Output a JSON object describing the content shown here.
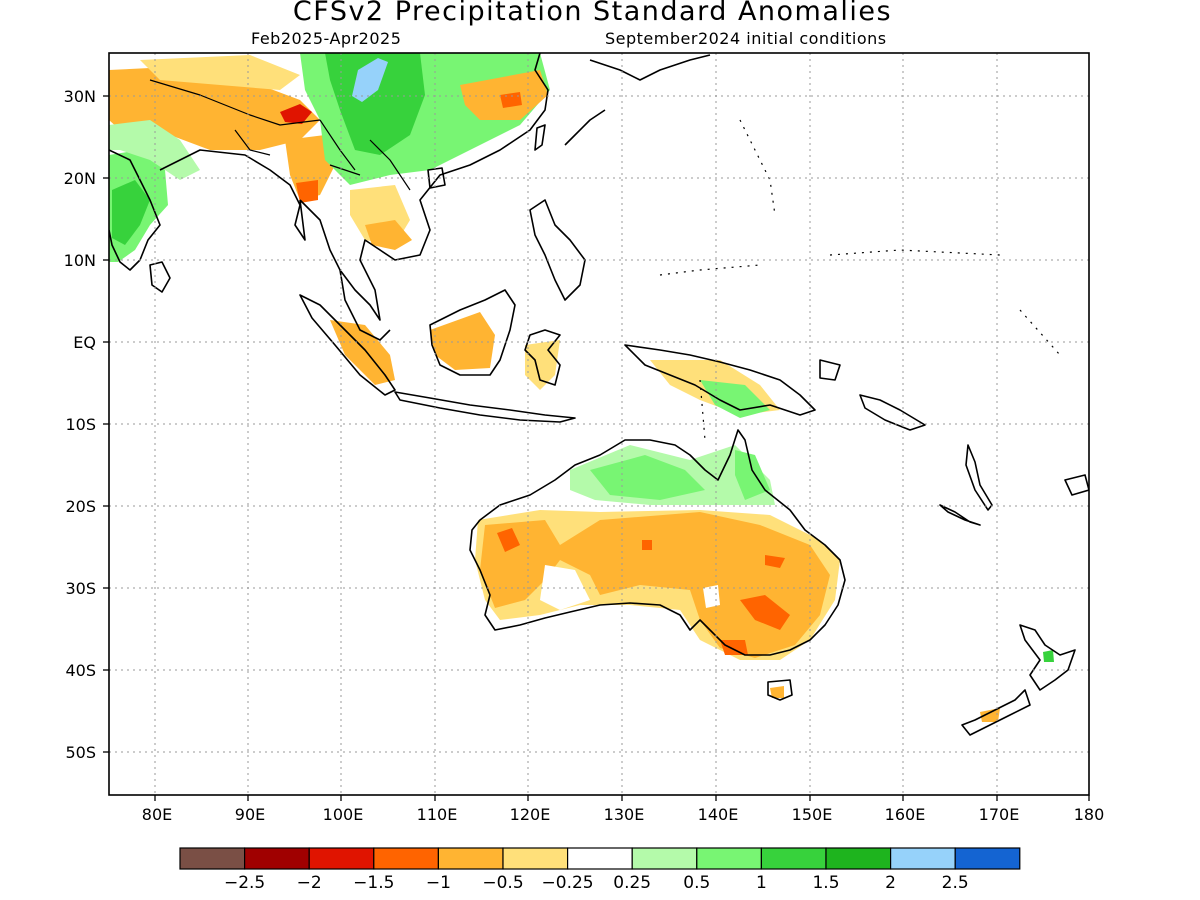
{
  "title": "CFSv2 Precipitation Standard Anomalies",
  "period": "Feb2025-Apr2025",
  "initial_conditions": "September2024 initial conditions",
  "lat_labels": [
    "30N",
    "20N",
    "10N",
    "EQ",
    "10S",
    "20S",
    "30S",
    "40S",
    "50S"
  ],
  "lon_labels": [
    "80E",
    "90E",
    "100E",
    "110E",
    "120E",
    "130E",
    "140E",
    "150E",
    "160E",
    "170E",
    "180"
  ],
  "colorbar": {
    "colors": [
      "#7a4f45",
      "#a00000",
      "#e01400",
      "#ff6400",
      "#ffb432",
      "#ffe07a",
      "#ffffff",
      "#b4faaa",
      "#78f573",
      "#37d23c",
      "#1eb41e",
      "#96d2fa",
      "#1464d2"
    ],
    "labels": [
      "-2.5",
      "-2",
      "-1.5",
      "-1",
      "-0.5",
      "-0.25",
      "0.25",
      "0.5",
      "1",
      "1.5",
      "2",
      "2.5"
    ]
  },
  "legend_colors": {
    "brown": "#7a4f45",
    "dark_red": "#a00000",
    "red": "#e01400",
    "orange": "#ff6400",
    "light_orange": "#ffb432",
    "yellow": "#ffe07a",
    "white": "#ffffff",
    "light_green": "#b4faaa",
    "green": "#78f573",
    "mid_green": "#37d23c",
    "dark_green": "#1eb41e",
    "light_blue": "#96d2fa",
    "blue": "#1464d2"
  }
}
